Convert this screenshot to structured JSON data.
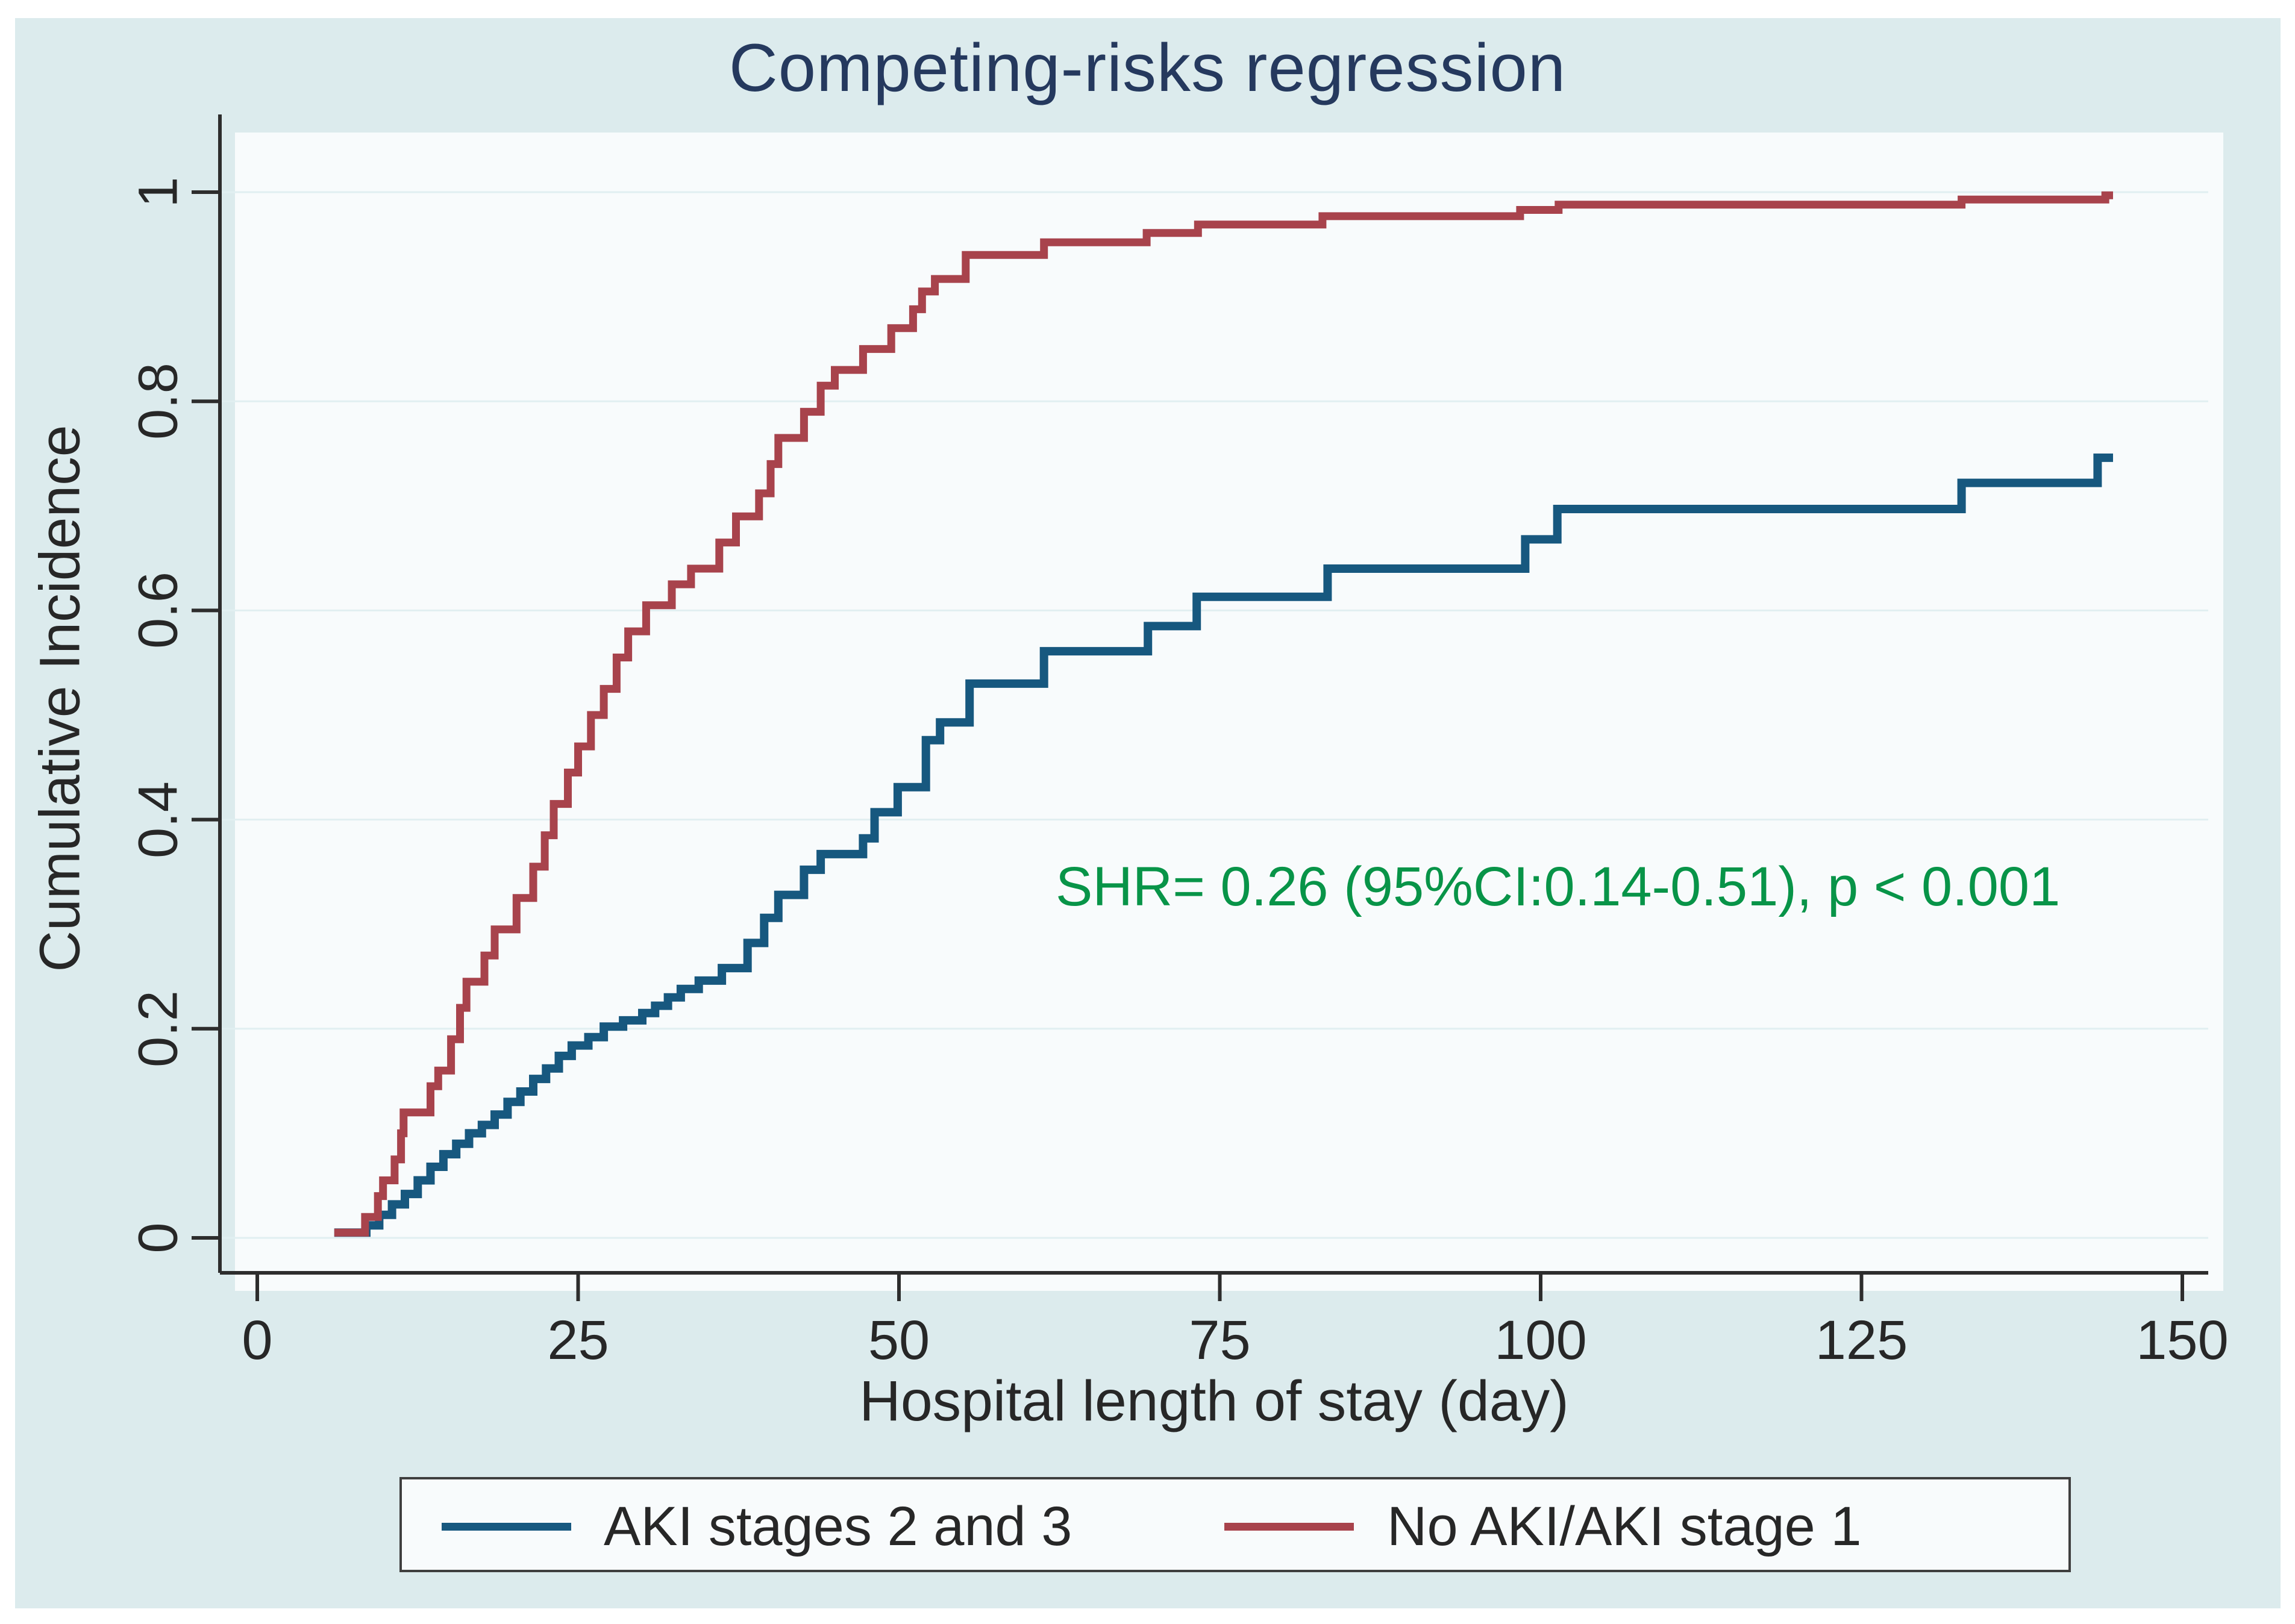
{
  "figure": {
    "title": "Competing-risks regression",
    "annotation": "SHR= 0.26 (95%CI:0.14-0.51), p < 0.001"
  },
  "legend": {
    "items": [
      {
        "label": "AKI stages 2 and 3",
        "color": "#17587f"
      },
      {
        "label": "No AKI/AKI stage 1",
        "color": "#a8434c"
      }
    ]
  },
  "colors": {
    "figure_background": "#dcebed",
    "plot_background": "#f8fbfc",
    "gridline": "#e1eff1",
    "axis": "#2d2d2d",
    "title": "#25395e",
    "annotation_green": "#089448",
    "series_blue": "#17587f",
    "series_red": "#a8434c",
    "text": "#272727"
  },
  "chart_data": {
    "type": "line",
    "subtype": "step-cumulative-incidence",
    "title": "Competing-risks regression",
    "xlabel": "Hospital length of stay (day)",
    "ylabel": "Cumulative Incidence",
    "xlim": [
      0,
      150
    ],
    "ylim": [
      0,
      1
    ],
    "x_ticks": [
      0,
      25,
      50,
      75,
      100,
      125,
      150
    ],
    "x_tick_labels": [
      "0",
      "25",
      "50",
      "75",
      "100",
      "125",
      "150"
    ],
    "y_ticks": [
      0,
      0.2,
      0.4,
      0.6,
      0.8,
      1
    ],
    "y_tick_labels": [
      "0",
      "0.2",
      "0.4",
      "0.6",
      "0.8",
      "1"
    ],
    "grid": "horizontal gridlines at each y tick",
    "legend_position": "bottom",
    "annotation": {
      "text": "SHR= 0.26 (95%CI:0.14-0.51), p < 0.001",
      "color": "#089448",
      "x": 62,
      "y": 0.34
    },
    "series": [
      {
        "name": "AKI stages 2 and 3",
        "color": "#17587f",
        "stroke_width": 14,
        "points": [
          [
            6,
            0.005
          ],
          [
            8.5,
            0.012
          ],
          [
            9.5,
            0.022
          ],
          [
            10.5,
            0.032
          ],
          [
            11.5,
            0.042
          ],
          [
            12.5,
            0.055
          ],
          [
            13.5,
            0.068
          ],
          [
            14.5,
            0.08
          ],
          [
            15.5,
            0.09
          ],
          [
            16.5,
            0.1
          ],
          [
            17.5,
            0.108
          ],
          [
            18.5,
            0.118
          ],
          [
            19.5,
            0.13
          ],
          [
            20.5,
            0.14
          ],
          [
            21.5,
            0.152
          ],
          [
            22.5,
            0.162
          ],
          [
            23.5,
            0.174
          ],
          [
            24.5,
            0.184
          ],
          [
            25.8,
            0.192
          ],
          [
            27,
            0.202
          ],
          [
            28.5,
            0.208
          ],
          [
            30,
            0.215
          ],
          [
            31,
            0.222
          ],
          [
            32,
            0.23
          ],
          [
            33,
            0.238
          ],
          [
            34.4,
            0.246
          ],
          [
            36.2,
            0.258
          ],
          [
            38.2,
            0.282
          ],
          [
            39.5,
            0.306
          ],
          [
            40.6,
            0.328
          ],
          [
            42.6,
            0.352
          ],
          [
            43.9,
            0.367
          ],
          [
            47.2,
            0.382
          ],
          [
            48.1,
            0.407
          ],
          [
            49.9,
            0.431
          ],
          [
            52.1,
            0.476
          ],
          [
            53.2,
            0.493
          ],
          [
            55.5,
            0.53
          ],
          [
            61.3,
            0.561
          ],
          [
            69.4,
            0.585
          ],
          [
            73.2,
            0.613
          ],
          [
            83.4,
            0.64
          ],
          [
            98.8,
            0.668
          ],
          [
            101.3,
            0.697
          ],
          [
            132.8,
            0.722
          ],
          [
            143.4,
            0.746
          ],
          [
            144.6,
            0.746
          ]
        ]
      },
      {
        "name": "No AKI/AKI stage 1",
        "color": "#a8434c",
        "stroke_width": 13,
        "points": [
          [
            6,
            0.005
          ],
          [
            8.4,
            0.02
          ],
          [
            9.4,
            0.04
          ],
          [
            9.8,
            0.055
          ],
          [
            10.7,
            0.075
          ],
          [
            11.2,
            0.1
          ],
          [
            11.4,
            0.12
          ],
          [
            13.5,
            0.145
          ],
          [
            14.1,
            0.16
          ],
          [
            15.1,
            0.19
          ],
          [
            15.8,
            0.22
          ],
          [
            16.3,
            0.245
          ],
          [
            17.7,
            0.27
          ],
          [
            18.5,
            0.295
          ],
          [
            20.2,
            0.325
          ],
          [
            21.5,
            0.355
          ],
          [
            22.4,
            0.385
          ],
          [
            23.1,
            0.415
          ],
          [
            24.2,
            0.445
          ],
          [
            25,
            0.47
          ],
          [
            26,
            0.5
          ],
          [
            27,
            0.525
          ],
          [
            28,
            0.555
          ],
          [
            28.9,
            0.58
          ],
          [
            30.3,
            0.605
          ],
          [
            32.3,
            0.625
          ],
          [
            33.8,
            0.64
          ],
          [
            36,
            0.665
          ],
          [
            37.3,
            0.69
          ],
          [
            39.1,
            0.712
          ],
          [
            40,
            0.74
          ],
          [
            40.6,
            0.765
          ],
          [
            42.6,
            0.79
          ],
          [
            43.9,
            0.815
          ],
          [
            45,
            0.83
          ],
          [
            47.2,
            0.85
          ],
          [
            49.4,
            0.87
          ],
          [
            51.1,
            0.888
          ],
          [
            51.8,
            0.905
          ],
          [
            52.8,
            0.917
          ],
          [
            55.2,
            0.94
          ],
          [
            61.3,
            0.952
          ],
          [
            69.3,
            0.961
          ],
          [
            73.3,
            0.969
          ],
          [
            83,
            0.977
          ],
          [
            98.4,
            0.983
          ],
          [
            101.4,
            0.988
          ],
          [
            132.8,
            0.993
          ],
          [
            144,
            0.997
          ],
          [
            144.6,
            0.997
          ]
        ]
      }
    ]
  }
}
